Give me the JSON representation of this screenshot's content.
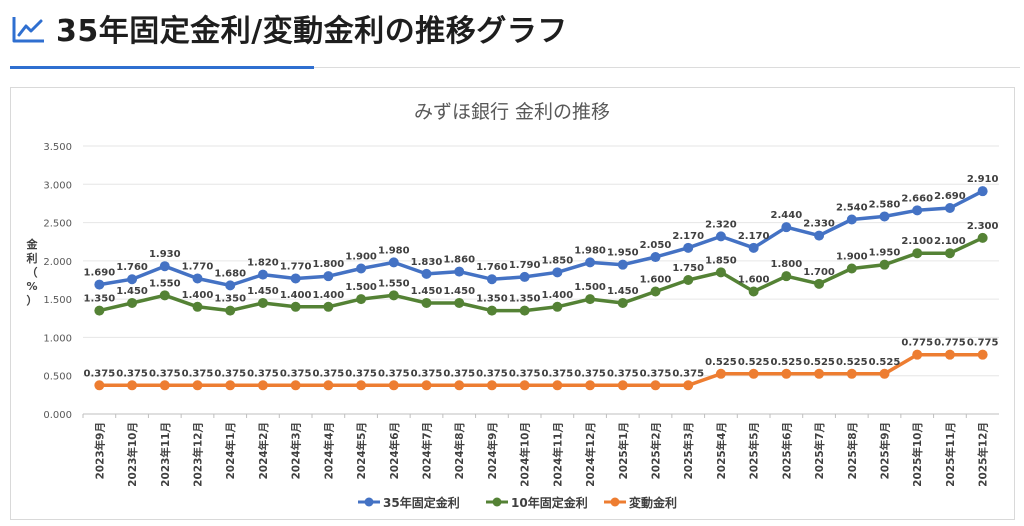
{
  "header": {
    "icon": "line-chart-icon",
    "title": "35年固定金利/変動金利の推移グラフ"
  },
  "colors": {
    "accent": "#2f6fd0",
    "series": [
      "#4472c4",
      "#548235",
      "#ed7d31"
    ]
  },
  "chart_data": {
    "type": "line",
    "title": "みずほ銀行 金利の推移",
    "ylabel": "金利（%）",
    "xlabel": "",
    "ylim": [
      0,
      3.5
    ],
    "yticks": [
      "0.000",
      "0.500",
      "1.000",
      "1.500",
      "2.000",
      "2.500",
      "3.000",
      "3.500"
    ],
    "grid": "horizontal",
    "legend": "bottom-center",
    "categories": [
      "2023年9月",
      "2023年10月",
      "2023年11月",
      "2023年12月",
      "2024年1月",
      "2024年2月",
      "2024年3月",
      "2024年4月",
      "2024年5月",
      "2024年6月",
      "2024年7月",
      "2024年8月",
      "2024年9月",
      "2024年10月",
      "2024年11月",
      "2024年12月",
      "2025年1月",
      "2025年2月",
      "2025年3月",
      "2025年4月",
      "2025年5月",
      "2025年6月",
      "2025年7月",
      "2025年8月",
      "2025年9月",
      "2025年10月",
      "2025年11月",
      "2025年12月"
    ],
    "series": [
      {
        "name": "35年固定金利",
        "values": [
          1.69,
          1.76,
          1.93,
          1.77,
          1.68,
          1.82,
          1.77,
          1.8,
          1.9,
          1.98,
          1.83,
          1.86,
          1.76,
          1.79,
          1.85,
          1.98,
          1.95,
          2.05,
          2.17,
          2.32,
          2.17,
          2.44,
          2.33,
          2.54,
          2.58,
          2.66,
          2.69,
          2.91
        ],
        "labels": [
          "1.690",
          "1.760",
          "1.930",
          "1.770",
          "1.680",
          "1.820",
          "1.770",
          "1.800",
          "1.900",
          "1.980",
          "1.830",
          "1.860",
          "1.760",
          "1.790",
          "1.850",
          "1.980",
          "1.950",
          "2.050",
          "2.170",
          "2.320",
          "2.170",
          "2.440",
          "2.330",
          "2.540",
          "2.580",
          "2.660",
          "2.690",
          "2.910"
        ]
      },
      {
        "name": "10年固定金利",
        "values": [
          1.35,
          1.45,
          1.55,
          1.4,
          1.35,
          1.45,
          1.4,
          1.4,
          1.5,
          1.55,
          1.45,
          1.45,
          1.35,
          1.35,
          1.4,
          1.5,
          1.45,
          1.6,
          1.75,
          1.85,
          1.6,
          1.8,
          1.7,
          1.9,
          1.95,
          2.1,
          2.1,
          2.3
        ],
        "labels": [
          "1.350",
          "1.450",
          "1.550",
          "1.400",
          "1.350",
          "1.450",
          "1.400",
          "1.400",
          "1.500",
          "1.550",
          "1.450",
          "1.450",
          "1.350",
          "1.350",
          "1.400",
          "1.500",
          "1.450",
          "1.600",
          "1.750",
          "1.850",
          "1.600",
          "1.800",
          "1.700",
          "1.900",
          "1.950",
          "2.100",
          "2.100",
          "2.300"
        ]
      },
      {
        "name": "変動金利",
        "values": [
          0.375,
          0.375,
          0.375,
          0.375,
          0.375,
          0.375,
          0.375,
          0.375,
          0.375,
          0.375,
          0.375,
          0.375,
          0.375,
          0.375,
          0.375,
          0.375,
          0.375,
          0.375,
          0.375,
          0.525,
          0.525,
          0.525,
          0.525,
          0.525,
          0.525,
          0.775,
          0.775,
          0.775
        ],
        "labels": [
          "0.375",
          "0.375",
          "0.375",
          "0.375",
          "0.375",
          "0.375",
          "0.375",
          "0.375",
          "0.375",
          "0.375",
          "0.375",
          "0.375",
          "0.375",
          "0.375",
          "0.375",
          "0.375",
          "0.375",
          "0.375",
          "0.375",
          "0.525",
          "0.525",
          "0.525",
          "0.525",
          "0.525",
          "0.525",
          "0.775",
          "0.775",
          "0.775"
        ]
      }
    ]
  }
}
